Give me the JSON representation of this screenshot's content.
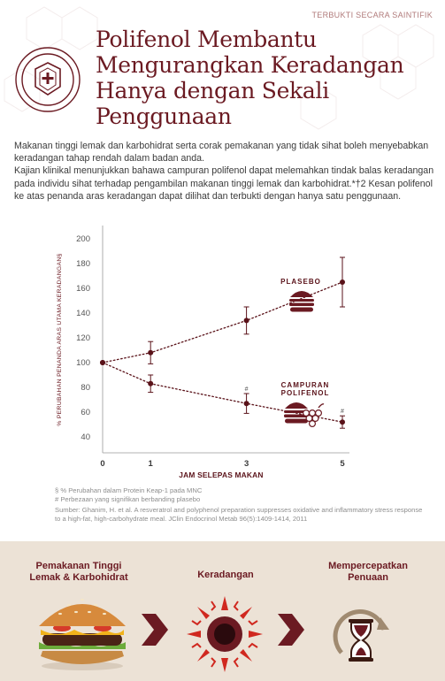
{
  "tagline": "TERBUKTI SECARA SAINTIFIK",
  "title": "Polifenol Membantu Mengurangkan Keradangan Hanya dengan Sekali Penggunaan",
  "intro": [
    "Makanan tinggi lemak dan karbohidrat serta corak pemakanan yang tidak sihat boleh menyebabkan keradangan tahap rendah dalam badan anda.",
    "Kajian klinikal menunjukkan bahawa campuran polifenol dapat melemahkan tindak balas keradangan pada individu sihat terhadap pengambilan makanan tinggi lemak dan karbohidrat.*†2 Kesan polifenol ke atas penanda aras keradangan dapat dilihat dan terbukti dengan hanya satu penggunaan."
  ],
  "chart_data": {
    "type": "line",
    "xlabel": "JAM SELEPAS MAKAN",
    "ylabel": "% PERUBAHAN PENANDA ARAS UTAMA KERADANGAN§",
    "x": [
      0,
      1,
      3,
      5
    ],
    "x_ticks": [
      "0",
      "1",
      "3",
      "5"
    ],
    "y_ticks": [
      "40",
      "60",
      "80",
      "100",
      "120",
      "140",
      "160",
      "180",
      "200"
    ],
    "ylim": [
      40,
      200
    ],
    "series": [
      {
        "name": "PLASEBO",
        "values": [
          100,
          108,
          134,
          165
        ],
        "error": [
          0,
          9,
          11,
          20
        ],
        "color": "#5a1219"
      },
      {
        "name": "CAMPURAN POLIFENOL",
        "values": [
          100,
          83,
          67,
          52
        ],
        "error": [
          0,
          7,
          8,
          5
        ],
        "markers": [
          "",
          "",
          "#",
          "#"
        ],
        "color": "#5a1219"
      }
    ]
  },
  "notes": {
    "n1": "§ % Perubahan dalam Protein Keap-1 pada MNC",
    "n2": "# Perbezaan yang signifikan berbanding plasebo",
    "n3": "Sumber: Ghanim, H. et al. A resveratrol and polyphenol preparation suppresses oxidative and inflammatory stress response to a high-fat, high-carbohydrate meal. JClin Endocrinol Metab 96(5):1409-1414, 2011"
  },
  "flow": {
    "step1_line1": "Pemakanan Tinggi",
    "step1_line2": "Lemak & Karbohidrat",
    "step2": "Keradangan",
    "step3_line1": "Mempercepatkan",
    "step3_line2": "Penuaan"
  },
  "colors": {
    "brand": "#6b1a22",
    "dark": "#5a1219",
    "band": "#ece2d6",
    "accent_red": "#c42a2a"
  }
}
